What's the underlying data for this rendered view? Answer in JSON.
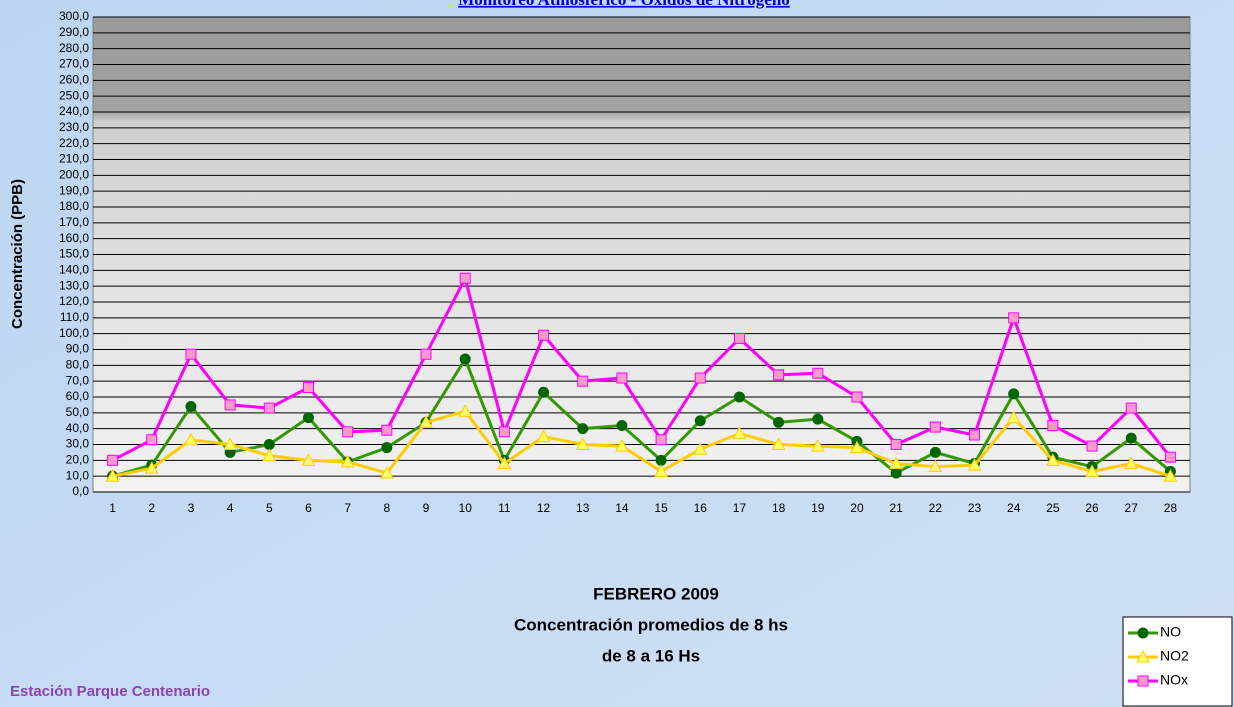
{
  "chart_data": {
    "type": "line",
    "title": "Monitoreo Atmosférico - Óxidos de Nitrógeno",
    "x_label": [
      "FEBRERO 2009",
      "Concentración promedios de 8 hs",
      "de 8 a 16 Hs"
    ],
    "y_label": "Concentración (PPB)",
    "footer": "Estación Parque Centenario",
    "categories": [
      "1",
      "2",
      "3",
      "4",
      "5",
      "6",
      "7",
      "8",
      "9",
      "10",
      "11",
      "12",
      "13",
      "14",
      "15",
      "16",
      "17",
      "18",
      "19",
      "20",
      "21",
      "22",
      "23",
      "24",
      "25",
      "26",
      "27",
      "28"
    ],
    "series": [
      {
        "name": "NO",
        "color": "#339900",
        "marker": "circle",
        "marker_color": "#006600",
        "values": [
          10,
          17,
          54,
          25,
          30,
          47,
          19,
          28,
          44,
          84,
          20,
          63,
          40,
          42,
          20,
          45,
          60,
          44,
          46,
          32,
          12,
          25,
          18,
          62,
          22,
          16,
          34,
          13
        ]
      },
      {
        "name": "NO2",
        "color": "#ffcc00",
        "marker": "triangle",
        "marker_color": "#ffff66",
        "values": [
          10,
          15,
          33,
          30,
          23,
          20,
          19,
          12,
          44,
          51,
          18,
          35,
          30,
          29,
          13,
          27,
          37,
          30,
          29,
          28,
          18,
          16,
          17,
          47,
          20,
          13,
          18,
          10
        ]
      },
      {
        "name": "NOx",
        "color": "#ff00ff",
        "marker": "square",
        "marker_color": "#ff99cc",
        "values": [
          20,
          33,
          87,
          55,
          53,
          66,
          38,
          39,
          87,
          135,
          38,
          99,
          70,
          72,
          33,
          72,
          97,
          74,
          75,
          60,
          30,
          41,
          36,
          110,
          42,
          29,
          53,
          22
        ]
      }
    ],
    "ylim": [
      0,
      300
    ],
    "yticks": [
      {
        "value": 0,
        "label": "0,0"
      },
      {
        "value": 10,
        "label": "10,0"
      },
      {
        "value": 20,
        "label": "20,0"
      },
      {
        "value": 30,
        "label": "30,0"
      },
      {
        "value": 40,
        "label": "40,0"
      },
      {
        "value": 50,
        "label": "50,0"
      },
      {
        "value": 60,
        "label": "60,0"
      },
      {
        "value": 70,
        "label": "70,0"
      },
      {
        "value": 80,
        "label": "80,0"
      },
      {
        "value": 90,
        "label": "90,0"
      },
      {
        "value": 100,
        "label": "100,0"
      },
      {
        "value": 110,
        "label": "110,0"
      },
      {
        "value": 120,
        "label": "120,0"
      },
      {
        "value": 130,
        "label": "130,0"
      },
      {
        "value": 140,
        "label": "140,0"
      },
      {
        "value": 150,
        "label": "150,0"
      },
      {
        "value": 160,
        "label": "160,0"
      },
      {
        "value": 170,
        "label": "170,0"
      },
      {
        "value": 180,
        "label": "180,0"
      },
      {
        "value": 190,
        "label": "190,0"
      },
      {
        "value": 200,
        "label": "200,0"
      },
      {
        "value": 210,
        "label": "210,0"
      },
      {
        "value": 220,
        "label": "220,0"
      },
      {
        "value": 230,
        "label": "230,0"
      },
      {
        "value": 240,
        "label": "240,0"
      },
      {
        "value": 250,
        "label": "250,0"
      },
      {
        "value": 260,
        "label": "260,0"
      },
      {
        "value": 270,
        "label": "270,0"
      },
      {
        "value": 280,
        "label": "280,0"
      },
      {
        "value": 290,
        "label": "290,0"
      },
      {
        "value": 300,
        "label": "300,0"
      }
    ],
    "grid": true
  }
}
